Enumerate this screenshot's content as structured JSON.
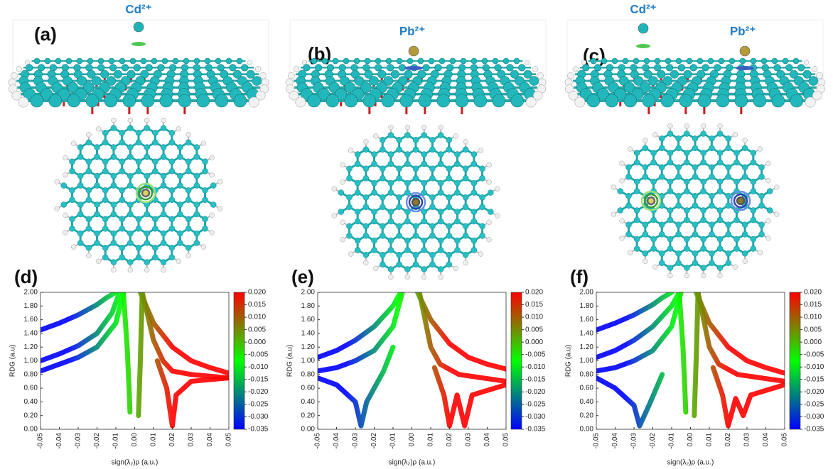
{
  "panels": [
    {
      "label": "(a)",
      "ions": [
        "Cd²⁺"
      ]
    },
    {
      "label": "(b)",
      "ions": [
        "Pb²⁺"
      ]
    },
    {
      "label": "(c)",
      "ions": [
        "Cd²⁺",
        "Pb²⁺"
      ]
    }
  ],
  "chart_data": [
    {
      "type": "scatter",
      "panel_label": "(d)",
      "x_label": "sign(λ₂)ρ (a.u.)",
      "y_label": "RDG (a.u)",
      "xlim": [
        -0.05,
        0.05
      ],
      "ylim": [
        0,
        2
      ],
      "xticks": [
        -0.05,
        -0.04,
        -0.03,
        -0.02,
        -0.01,
        {
          "value": 0,
          "label": "0.00"
        },
        0.01,
        0.02,
        0.03,
        0.04,
        0.05
      ],
      "yticks": [
        {
          "value": 0,
          "label": "0.00"
        },
        {
          "value": 0.2,
          "label": "0.20"
        },
        {
          "value": 0.4,
          "label": "0.40"
        },
        {
          "value": 0.6,
          "label": "0.60"
        },
        {
          "value": 0.8,
          "label": "0.80"
        },
        {
          "value": 1,
          "label": "1.00"
        },
        {
          "value": 1.2,
          "label": "1.20"
        },
        {
          "value": 1.4,
          "label": "1.40"
        },
        {
          "value": 1.6,
          "label": "1.60"
        },
        {
          "value": 1.8,
          "label": "1.80"
        },
        {
          "value": 2,
          "label": "2.00"
        }
      ],
      "colorbar": {
        "lim": [
          -0.035,
          0.02
        ],
        "colors": [
          "#0000ff",
          "#00ff00",
          "#ff0000"
        ],
        "ticks": [
          -0.035,
          {
            "value": -0.03,
            "label": "-0.030"
          },
          -0.025,
          {
            "value": -0.02,
            "label": "-0.020"
          },
          -0.015,
          {
            "value": -0.01,
            "label": "-0.010"
          },
          -0.005,
          {
            "value": 0,
            "label": "0.000"
          },
          0.005,
          {
            "value": 0.01,
            "label": "0.010"
          },
          0.015,
          {
            "value": 0.02,
            "label": "0.020"
          }
        ]
      },
      "series": [
        {
          "x": [
            -0.05,
            -0.04,
            -0.03,
            -0.02,
            -0.015,
            -0.01
          ],
          "y": [
            1.45,
            1.55,
            1.67,
            1.82,
            1.92,
            2.0
          ]
        },
        {
          "x": [
            -0.05,
            -0.04,
            -0.03,
            -0.02,
            -0.012,
            -0.008
          ],
          "y": [
            1.0,
            1.1,
            1.22,
            1.4,
            1.7,
            2.0
          ]
        },
        {
          "x": [
            -0.05,
            -0.04,
            -0.03,
            -0.02,
            -0.01,
            -0.006
          ],
          "y": [
            0.85,
            0.95,
            1.05,
            1.2,
            1.55,
            2.0
          ]
        },
        {
          "x": [
            -0.006,
            -0.004,
            -0.003,
            -0.0025
          ],
          "y": [
            2.0,
            1.2,
            0.6,
            0.25
          ]
        },
        {
          "x": [
            0.004,
            0.003,
            0.002
          ],
          "y": [
            2.0,
            1.0,
            0.2
          ]
        },
        {
          "x": [
            0.003,
            0.01,
            0.02,
            0.03,
            0.04,
            0.05
          ],
          "y": [
            2.0,
            1.55,
            1.2,
            1.0,
            0.9,
            0.82
          ]
        },
        {
          "x": [
            0.004,
            0.01,
            0.015,
            0.02,
            0.03,
            0.05
          ],
          "y": [
            2.0,
            1.3,
            1.0,
            0.85,
            0.8,
            0.75
          ]
        },
        {
          "x": [
            0.012,
            0.017,
            0.02,
            0.022,
            0.03,
            0.05
          ],
          "y": [
            1.0,
            0.6,
            0.05,
            0.5,
            0.7,
            0.75
          ]
        }
      ]
    },
    {
      "type": "scatter",
      "panel_label": "(e)",
      "x_label": "sign(λ₂)ρ (a.u.)",
      "y_label": "RDG (a.u)",
      "xlim": [
        -0.05,
        0.05
      ],
      "ylim": [
        0,
        2
      ],
      "xticks": [
        -0.05,
        -0.04,
        -0.03,
        -0.02,
        -0.01,
        {
          "value": 0,
          "label": "0.00"
        },
        0.01,
        0.02,
        0.03,
        0.04,
        0.05
      ],
      "yticks": [
        {
          "value": 0,
          "label": "0.00"
        },
        {
          "value": 0.2,
          "label": "0.20"
        },
        {
          "value": 0.4,
          "label": "0.40"
        },
        {
          "value": 0.6,
          "label": "0.60"
        },
        {
          "value": 0.8,
          "label": "0.80"
        },
        {
          "value": 1,
          "label": "1.00"
        },
        {
          "value": 1.2,
          "label": "1.20"
        },
        {
          "value": 1.4,
          "label": "1.40"
        },
        {
          "value": 1.6,
          "label": "1.60"
        },
        {
          "value": 1.8,
          "label": "1.80"
        },
        {
          "value": 2,
          "label": "2.00"
        }
      ],
      "colorbar": {
        "lim": [
          -0.035,
          0.02
        ],
        "colors": [
          "#0000ff",
          "#00ff00",
          "#ff0000"
        ],
        "ticks": [
          -0.035,
          {
            "value": -0.03,
            "label": "-0.030"
          },
          -0.025,
          {
            "value": -0.02,
            "label": "-0.020"
          },
          -0.015,
          {
            "value": -0.01,
            "label": "-0.010"
          },
          -0.005,
          {
            "value": 0,
            "label": "0.000"
          },
          0.005,
          {
            "value": 0.01,
            "label": "0.010"
          },
          0.015,
          {
            "value": 0.02,
            "label": "0.020"
          }
        ]
      },
      "series": [
        {
          "x": [
            -0.05,
            -0.04,
            -0.03,
            -0.02,
            -0.01,
            -0.006
          ],
          "y": [
            1.05,
            1.15,
            1.3,
            1.5,
            1.8,
            2.0
          ]
        },
        {
          "x": [
            -0.05,
            -0.04,
            -0.03,
            -0.02,
            -0.01,
            -0.005
          ],
          "y": [
            0.85,
            0.9,
            1.0,
            1.15,
            1.5,
            2.0
          ]
        },
        {
          "x": [
            -0.05,
            -0.04,
            -0.03,
            -0.027,
            -0.024,
            -0.015,
            -0.01
          ],
          "y": [
            0.75,
            0.65,
            0.4,
            0.05,
            0.4,
            0.85,
            1.2
          ]
        },
        {
          "x": [
            0.003,
            0.01,
            0.02,
            0.03,
            0.04,
            0.05
          ],
          "y": [
            2.0,
            1.6,
            1.25,
            1.05,
            0.95,
            0.88
          ]
        },
        {
          "x": [
            0.004,
            0.01,
            0.015,
            0.025,
            0.05
          ],
          "y": [
            2.0,
            1.2,
            0.95,
            0.8,
            0.7
          ]
        },
        {
          "x": [
            0.012,
            0.017,
            0.02,
            0.024,
            0.028,
            0.032,
            0.05
          ],
          "y": [
            0.9,
            0.5,
            0.05,
            0.5,
            0.05,
            0.5,
            0.65
          ]
        }
      ]
    },
    {
      "type": "scatter",
      "panel_label": "(f)",
      "x_label": "sign(λ₂)ρ (a.u.)",
      "y_label": "RDG (a.u)",
      "xlim": [
        -0.05,
        0.05
      ],
      "ylim": [
        0,
        2
      ],
      "xticks": [
        -0.05,
        -0.04,
        -0.03,
        -0.02,
        -0.01,
        {
          "value": 0,
          "label": "0.00"
        },
        0.01,
        0.02,
        0.03,
        0.04,
        0.05
      ],
      "yticks": [
        {
          "value": 0,
          "label": "0.00"
        },
        {
          "value": 0.2,
          "label": "0.20"
        },
        {
          "value": 0.4,
          "label": "0.40"
        },
        {
          "value": 0.6,
          "label": "0.60"
        },
        {
          "value": 0.8,
          "label": "0.80"
        },
        {
          "value": 1,
          "label": "1.00"
        },
        {
          "value": 1.2,
          "label": "1.20"
        },
        {
          "value": 1.4,
          "label": "1.40"
        },
        {
          "value": 1.6,
          "label": "1.60"
        },
        {
          "value": 1.8,
          "label": "1.80"
        },
        {
          "value": 2,
          "label": "2.00"
        }
      ],
      "colorbar": {
        "lim": [
          -0.035,
          0.02
        ],
        "colors": [
          "#0000ff",
          "#00ff00",
          "#ff0000"
        ],
        "ticks": [
          -0.035,
          {
            "value": -0.03,
            "label": "-0.030"
          },
          -0.025,
          {
            "value": -0.02,
            "label": "-0.020"
          },
          -0.015,
          {
            "value": -0.01,
            "label": "-0.010"
          },
          -0.005,
          {
            "value": 0,
            "label": "0.000"
          },
          0.005,
          {
            "value": 0.01,
            "label": "0.010"
          },
          0.015,
          {
            "value": 0.02,
            "label": "0.020"
          }
        ]
      },
      "series": [
        {
          "x": [
            -0.05,
            -0.04,
            -0.03,
            -0.02,
            -0.015,
            -0.01
          ],
          "y": [
            1.45,
            1.55,
            1.67,
            1.82,
            1.92,
            2.0
          ]
        },
        {
          "x": [
            -0.05,
            -0.04,
            -0.03,
            -0.02,
            -0.01,
            -0.006
          ],
          "y": [
            1.05,
            1.15,
            1.3,
            1.5,
            1.8,
            2.0
          ]
        },
        {
          "x": [
            -0.05,
            -0.04,
            -0.03,
            -0.02,
            -0.01,
            -0.005
          ],
          "y": [
            0.85,
            0.9,
            1.0,
            1.15,
            1.5,
            2.0
          ]
        },
        {
          "x": [
            -0.05,
            -0.04,
            -0.03,
            -0.027,
            -0.022,
            -0.015
          ],
          "y": [
            0.75,
            0.6,
            0.35,
            0.05,
            0.35,
            0.8
          ]
        },
        {
          "x": [
            -0.006,
            -0.004,
            -0.003,
            -0.0025
          ],
          "y": [
            2.0,
            1.2,
            0.6,
            0.25
          ]
        },
        {
          "x": [
            0.004,
            0.003,
            0.002
          ],
          "y": [
            2.0,
            1.0,
            0.2
          ]
        },
        {
          "x": [
            0.003,
            0.01,
            0.02,
            0.03,
            0.04,
            0.05
          ],
          "y": [
            2.0,
            1.55,
            1.2,
            1.0,
            0.9,
            0.82
          ]
        },
        {
          "x": [
            0.004,
            0.01,
            0.015,
            0.025,
            0.05
          ],
          "y": [
            2.0,
            1.2,
            0.95,
            0.8,
            0.7
          ]
        },
        {
          "x": [
            0.012,
            0.017,
            0.02,
            0.024,
            0.028,
            0.032,
            0.05
          ],
          "y": [
            0.9,
            0.5,
            0.05,
            0.45,
            0.2,
            0.5,
            0.65
          ]
        }
      ]
    }
  ]
}
